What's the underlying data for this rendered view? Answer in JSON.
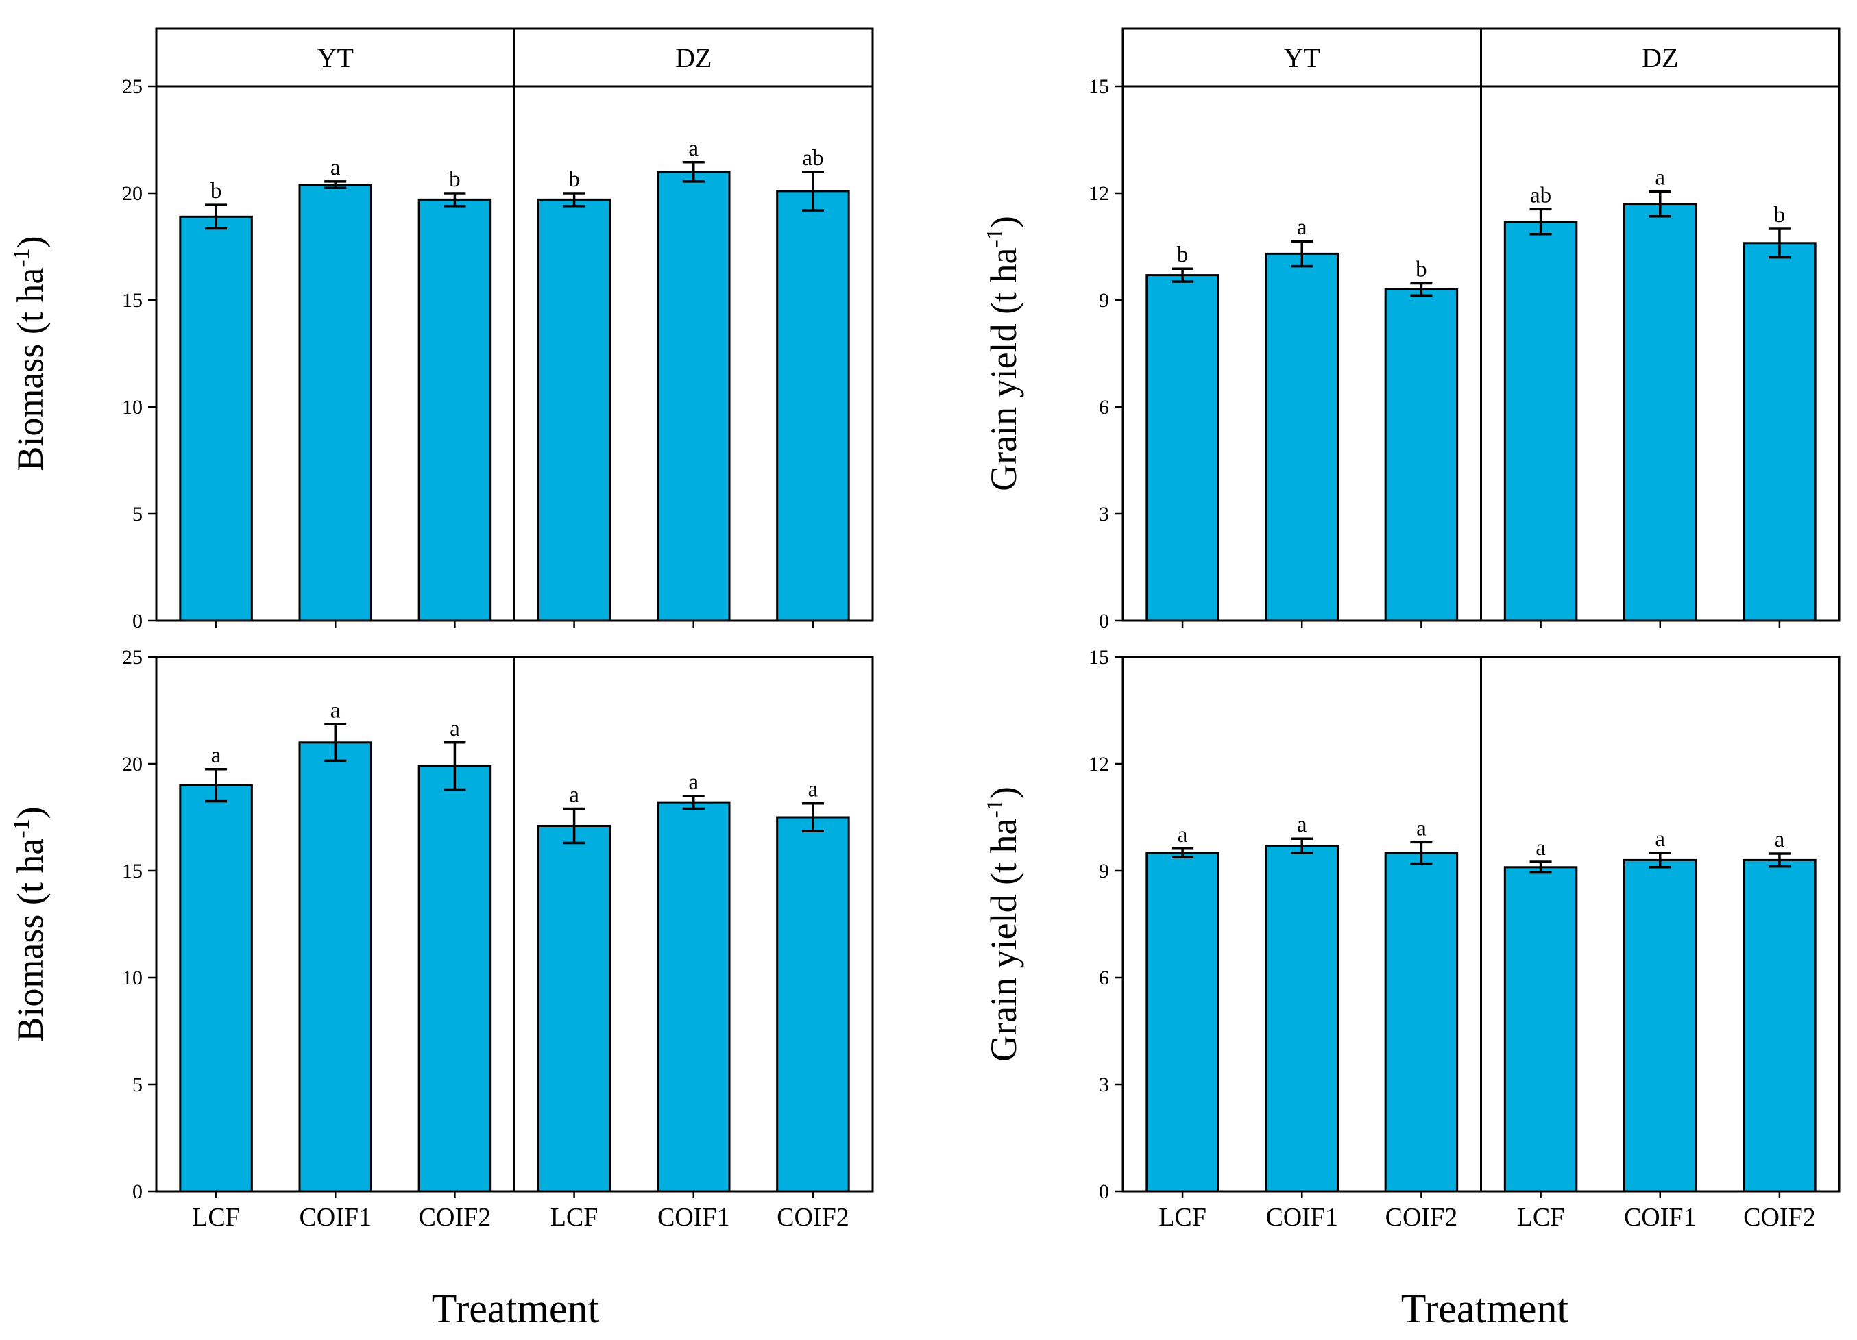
{
  "colors": {
    "bar": "#00AEE0",
    "stroke": "#000000"
  },
  "xlabel": "Treatment",
  "chart_data": [
    {
      "type": "bar",
      "panel": "top-left",
      "ylabel": "Biomass (t ha",
      "ylabel_sup": "-1",
      "ylim": [
        0,
        25
      ],
      "yticks": [
        0,
        5,
        10,
        15,
        20,
        25
      ],
      "strip_labels": [
        "YT",
        "DZ"
      ],
      "groups": [
        {
          "name": "YT",
          "categories": [
            "LCF",
            "COIF1",
            "COIF2"
          ],
          "values": [
            18.9,
            20.4,
            19.7
          ],
          "errors": [
            0.55,
            0.15,
            0.3
          ],
          "letters": [
            "b",
            "a",
            "b"
          ]
        },
        {
          "name": "DZ",
          "categories": [
            "LCF",
            "COIF1",
            "COIF2"
          ],
          "values": [
            19.7,
            21.0,
            20.1
          ],
          "errors": [
            0.3,
            0.45,
            0.9
          ],
          "letters": [
            "b",
            "a",
            "ab"
          ]
        }
      ]
    },
    {
      "type": "bar",
      "panel": "top-right",
      "ylabel": "Grain yield (t ha",
      "ylabel_sup": "-1",
      "ylim": [
        0,
        15
      ],
      "yticks": [
        0,
        3,
        6,
        9,
        12,
        15
      ],
      "strip_labels": [
        "YT",
        "DZ"
      ],
      "groups": [
        {
          "name": "YT",
          "categories": [
            "LCF",
            "COIF1",
            "COIF2"
          ],
          "values": [
            9.7,
            10.3,
            9.3
          ],
          "errors": [
            0.18,
            0.35,
            0.17
          ],
          "letters": [
            "b",
            "a",
            "b"
          ]
        },
        {
          "name": "DZ",
          "categories": [
            "LCF",
            "COIF1",
            "COIF2"
          ],
          "values": [
            11.2,
            11.7,
            10.6
          ],
          "errors": [
            0.35,
            0.35,
            0.4
          ],
          "letters": [
            "ab",
            "a",
            "b"
          ]
        }
      ]
    },
    {
      "type": "bar",
      "panel": "bottom-left",
      "ylabel": "Biomass (t ha",
      "ylabel_sup": "-1",
      "ylim": [
        0,
        25
      ],
      "yticks": [
        0,
        5,
        10,
        15,
        20,
        25
      ],
      "groups": [
        {
          "name": "YT",
          "categories": [
            "LCF",
            "COIF1",
            "COIF2"
          ],
          "values": [
            19.0,
            21.0,
            19.9
          ],
          "errors": [
            0.75,
            0.85,
            1.1
          ],
          "letters": [
            "a",
            "a",
            "a"
          ]
        },
        {
          "name": "DZ",
          "categories": [
            "LCF",
            "COIF1",
            "COIF2"
          ],
          "values": [
            17.1,
            18.2,
            17.5
          ],
          "errors": [
            0.8,
            0.3,
            0.65
          ],
          "letters": [
            "a",
            "a",
            "a"
          ]
        }
      ]
    },
    {
      "type": "bar",
      "panel": "bottom-right",
      "ylabel": "Grain yield (t ha",
      "ylabel_sup": "-1",
      "ylim": [
        0,
        15
      ],
      "yticks": [
        0,
        3,
        6,
        9,
        12,
        15
      ],
      "groups": [
        {
          "name": "YT",
          "categories": [
            "LCF",
            "COIF1",
            "COIF2"
          ],
          "values": [
            9.5,
            9.7,
            9.5
          ],
          "errors": [
            0.12,
            0.2,
            0.3
          ],
          "letters": [
            "a",
            "a",
            "a"
          ]
        },
        {
          "name": "DZ",
          "categories": [
            "LCF",
            "COIF1",
            "COIF2"
          ],
          "values": [
            9.1,
            9.3,
            9.3
          ],
          "errors": [
            0.15,
            0.2,
            0.18
          ],
          "letters": [
            "a",
            "a",
            "a"
          ]
        }
      ]
    }
  ]
}
